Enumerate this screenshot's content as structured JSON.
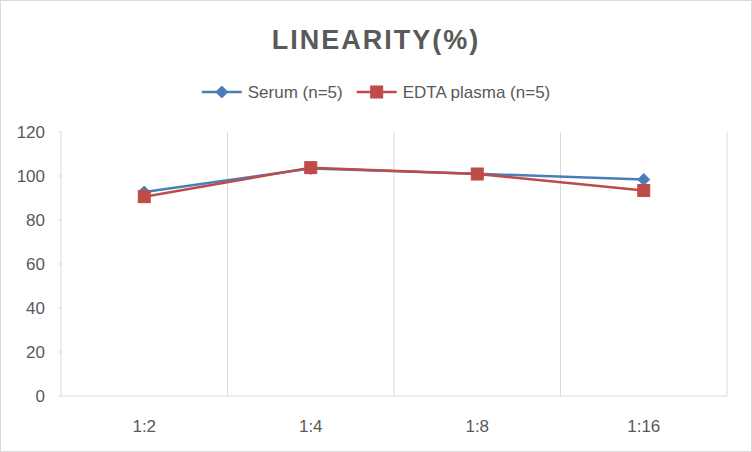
{
  "chart_data": {
    "type": "line",
    "title": "LINEARITY(%)",
    "categories": [
      "1:2",
      "1:4",
      "1:8",
      "1:16"
    ],
    "series": [
      {
        "name": "Serum (n=5)",
        "color": "#4a7ebb",
        "marker": "diamond",
        "values": [
          92.7,
          103.4,
          101.0,
          98.4
        ]
      },
      {
        "name": "EDTA plasma (n=5)",
        "color": "#be4b48",
        "marker": "square",
        "values": [
          90.6,
          103.8,
          100.9,
          93.4
        ]
      }
    ],
    "ylim": [
      0,
      120
    ],
    "yticks": [
      0,
      20,
      40,
      60,
      80,
      100,
      120
    ],
    "grid": true,
    "legend": "top"
  }
}
